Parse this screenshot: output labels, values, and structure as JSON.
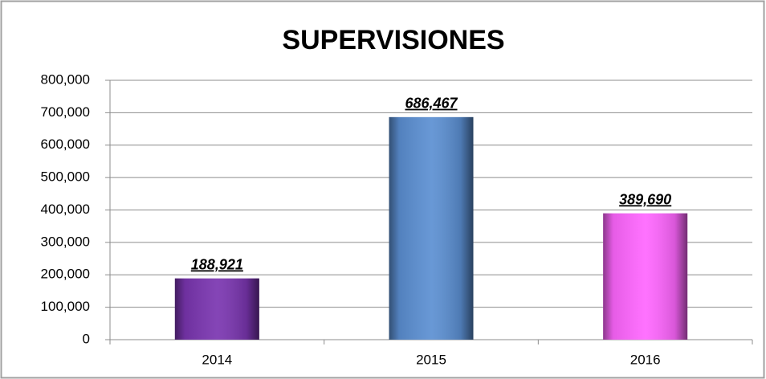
{
  "chart_data": {
    "type": "bar",
    "title": "SUPERVISIONES",
    "categories": [
      "2014",
      "2015",
      "2016"
    ],
    "values": [
      188921,
      686467,
      389690
    ],
    "value_labels": [
      "188,921",
      "686,467",
      "389,690"
    ],
    "colors": [
      "#7a35b0",
      "#5b8fd2",
      "#ff66ff"
    ],
    "ylim": [
      0,
      800000
    ],
    "yticks": [
      0,
      {
        "value": 100000,
        "label": "100,000"
      },
      {
        "value": 200000,
        "label": "200,000"
      },
      {
        "value": 300000,
        "label": "300,000"
      },
      {
        "value": 400000,
        "label": "400,000"
      },
      {
        "value": 500000,
        "label": "500,000"
      },
      {
        "value": 600000,
        "label": "600,000"
      },
      {
        "value": 700000,
        "label": "700,000"
      },
      {
        "value": 800000,
        "label": "800,000"
      }
    ],
    "grid": true
  }
}
